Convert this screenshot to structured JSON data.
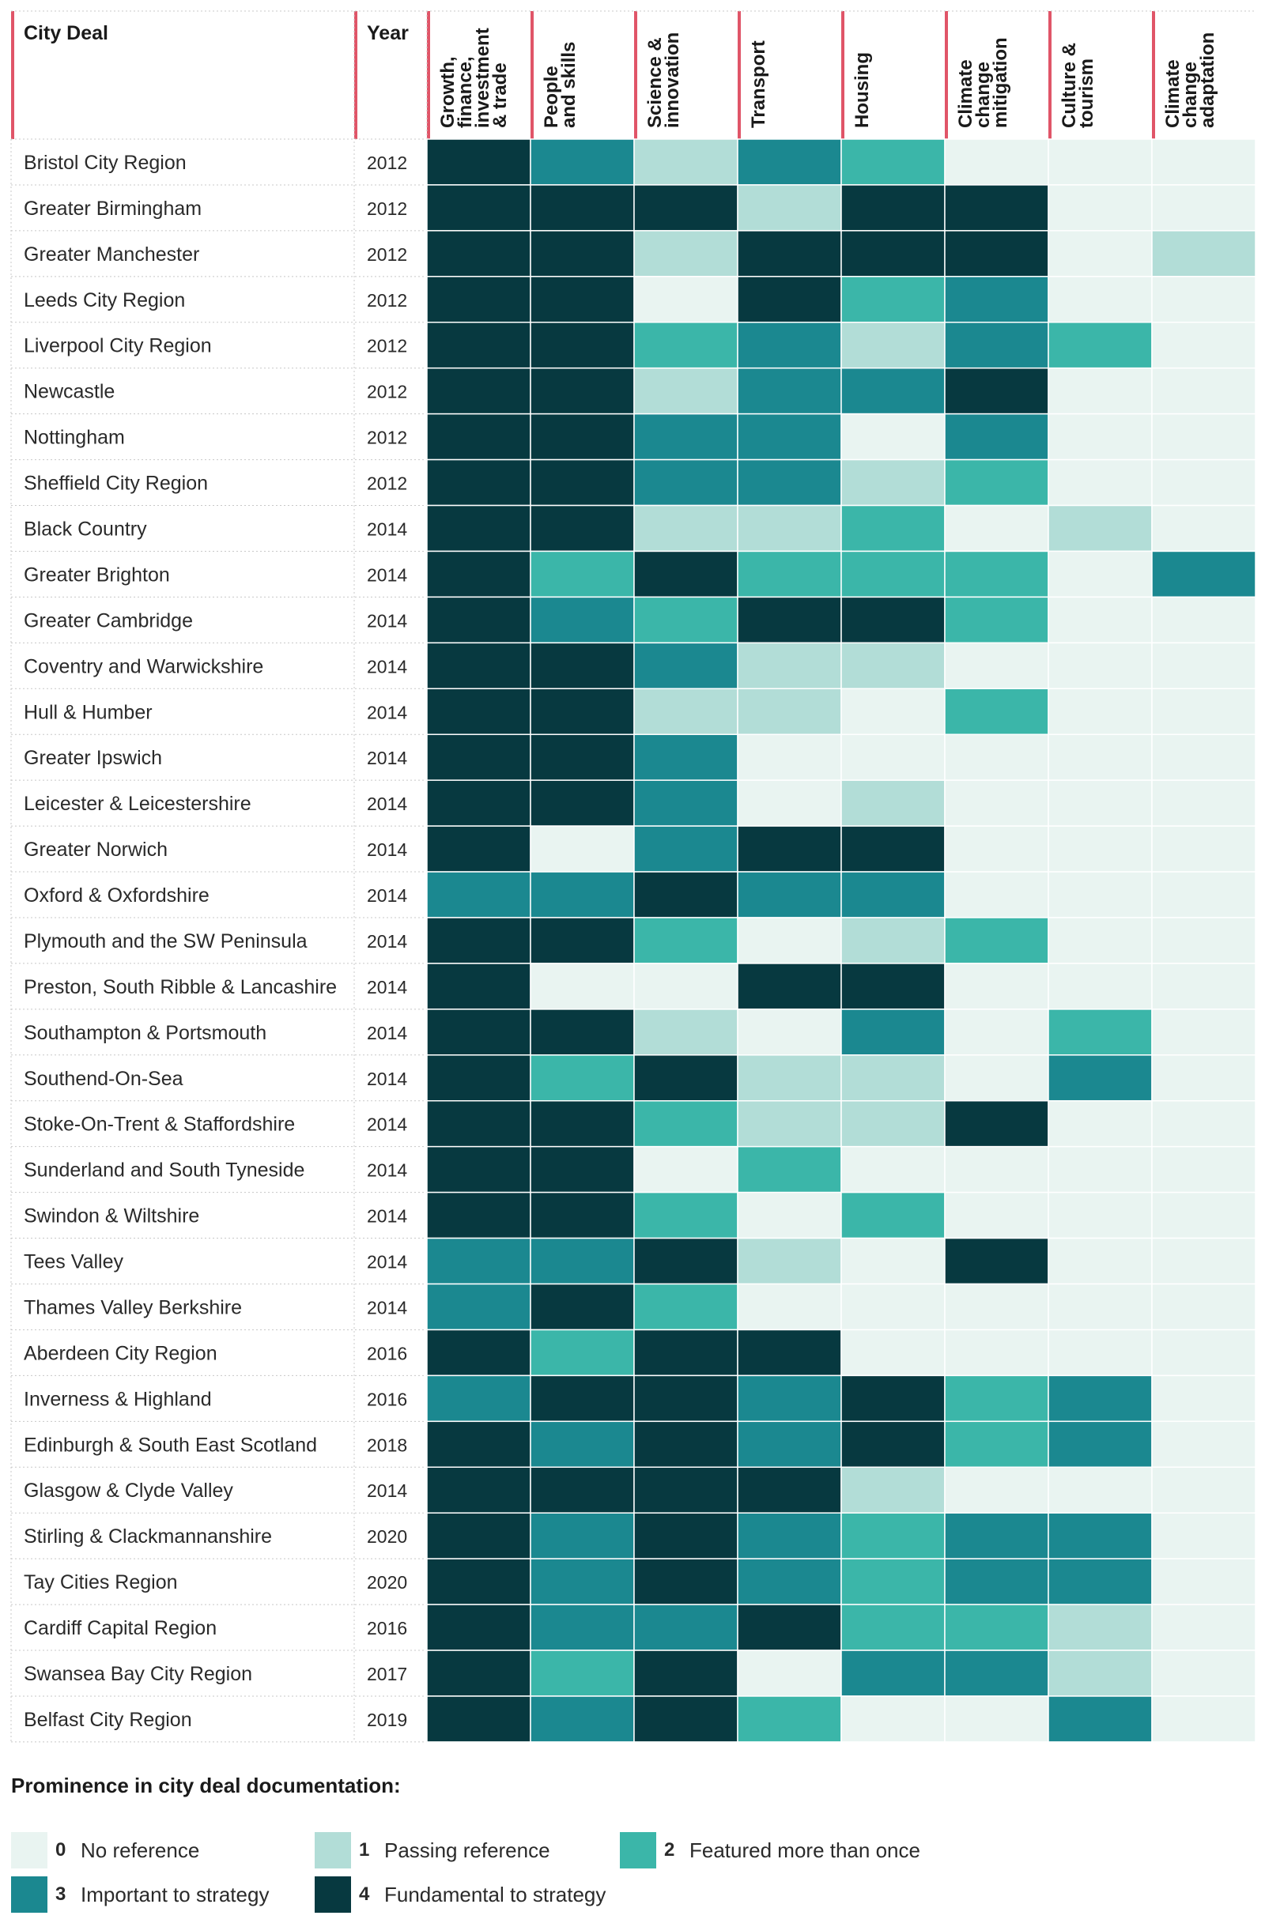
{
  "chart_data": {
    "type": "heatmap",
    "row_header": "City Deal",
    "year_header": "Year",
    "columns": [
      [
        "Growth,",
        "finance,",
        "investment",
        "& trade"
      ],
      [
        "People",
        "and skills"
      ],
      [
        "Science &",
        "innovation"
      ],
      [
        "Transport"
      ],
      [
        "Housing"
      ],
      [
        "Climate",
        "change",
        "mitigation"
      ],
      [
        "Culture &",
        "tourism"
      ],
      [
        "Climate",
        "change",
        "adaptation"
      ]
    ],
    "rows": [
      {
        "name": "Bristol City Region",
        "year": "2012",
        "values": [
          4,
          3,
          1,
          3,
          2,
          0,
          0,
          0
        ]
      },
      {
        "name": "Greater Birmingham",
        "year": "2012",
        "values": [
          4,
          4,
          4,
          1,
          4,
          4,
          0,
          0
        ]
      },
      {
        "name": "Greater Manchester",
        "year": "2012",
        "values": [
          4,
          4,
          1,
          4,
          4,
          4,
          0,
          1
        ]
      },
      {
        "name": "Leeds City Region",
        "year": "2012",
        "values": [
          4,
          4,
          0,
          4,
          2,
          3,
          0,
          0
        ]
      },
      {
        "name": "Liverpool City Region",
        "year": "2012",
        "values": [
          4,
          4,
          2,
          3,
          1,
          3,
          2,
          0
        ]
      },
      {
        "name": "Newcastle",
        "year": "2012",
        "values": [
          4,
          4,
          1,
          3,
          3,
          4,
          0,
          0
        ]
      },
      {
        "name": "Nottingham",
        "year": "2012",
        "values": [
          4,
          4,
          3,
          3,
          0,
          3,
          0,
          0
        ]
      },
      {
        "name": "Sheffield City Region",
        "year": "2012",
        "values": [
          4,
          4,
          3,
          3,
          1,
          2,
          0,
          0
        ]
      },
      {
        "name": "Black Country",
        "year": "2014",
        "values": [
          4,
          4,
          1,
          1,
          2,
          0,
          1,
          0
        ]
      },
      {
        "name": "Greater Brighton",
        "year": "2014",
        "values": [
          4,
          2,
          4,
          2,
          2,
          2,
          0,
          3
        ]
      },
      {
        "name": "Greater Cambridge",
        "year": "2014",
        "values": [
          4,
          3,
          2,
          4,
          4,
          2,
          0,
          0
        ]
      },
      {
        "name": "Coventry and Warwickshire",
        "year": "2014",
        "values": [
          4,
          4,
          3,
          1,
          1,
          0,
          0,
          0
        ]
      },
      {
        "name": "Hull & Humber",
        "year": "2014",
        "values": [
          4,
          4,
          1,
          1,
          0,
          2,
          0,
          0
        ]
      },
      {
        "name": "Greater Ipswich",
        "year": "2014",
        "values": [
          4,
          4,
          3,
          0,
          0,
          0,
          0,
          0
        ]
      },
      {
        "name": "Leicester & Leicestershire",
        "year": "2014",
        "values": [
          4,
          4,
          3,
          0,
          1,
          0,
          0,
          0
        ]
      },
      {
        "name": "Greater Norwich",
        "year": "2014",
        "values": [
          4,
          0,
          3,
          4,
          4,
          0,
          0,
          0
        ]
      },
      {
        "name": "Oxford & Oxfordshire",
        "year": "2014",
        "values": [
          3,
          3,
          4,
          3,
          3,
          0,
          0,
          0
        ]
      },
      {
        "name": "Plymouth and the SW Peninsula",
        "year": "2014",
        "values": [
          4,
          4,
          2,
          0,
          1,
          2,
          0,
          0
        ]
      },
      {
        "name": "Preston, South Ribble & Lancashire",
        "year": "2014",
        "values": [
          4,
          0,
          0,
          4,
          4,
          0,
          0,
          0
        ]
      },
      {
        "name": "Southampton & Portsmouth",
        "year": "2014",
        "values": [
          4,
          4,
          1,
          0,
          3,
          0,
          2,
          0
        ]
      },
      {
        "name": "Southend-On-Sea",
        "year": "2014",
        "values": [
          4,
          2,
          4,
          1,
          1,
          0,
          3,
          0
        ]
      },
      {
        "name": "Stoke-On-Trent & Staffordshire",
        "year": "2014",
        "values": [
          4,
          4,
          2,
          1,
          1,
          4,
          0,
          0
        ]
      },
      {
        "name": "Sunderland and South Tyneside",
        "year": "2014",
        "values": [
          4,
          4,
          0,
          2,
          0,
          0,
          0,
          0
        ]
      },
      {
        "name": "Swindon & Wiltshire",
        "year": "2014",
        "values": [
          4,
          4,
          2,
          0,
          2,
          0,
          0,
          0
        ]
      },
      {
        "name": "Tees Valley",
        "year": "2014",
        "values": [
          3,
          3,
          4,
          1,
          0,
          4,
          0,
          0
        ]
      },
      {
        "name": "Thames Valley Berkshire",
        "year": "2014",
        "values": [
          3,
          4,
          2,
          0,
          0,
          0,
          0,
          0
        ]
      },
      {
        "name": "Aberdeen City Region",
        "year": "2016",
        "values": [
          4,
          2,
          4,
          4,
          0,
          0,
          0,
          0
        ]
      },
      {
        "name": "Inverness & Highland",
        "year": "2016",
        "values": [
          3,
          4,
          4,
          3,
          4,
          2,
          3,
          0
        ]
      },
      {
        "name": "Edinburgh & South East Scotland",
        "year": "2018",
        "values": [
          4,
          3,
          4,
          3,
          4,
          2,
          3,
          0
        ]
      },
      {
        "name": "Glasgow & Clyde Valley",
        "year": "2014",
        "values": [
          4,
          4,
          4,
          4,
          1,
          0,
          0,
          0
        ]
      },
      {
        "name": "Stirling & Clackmannanshire",
        "year": "2020",
        "values": [
          4,
          3,
          4,
          3,
          2,
          3,
          3,
          0
        ]
      },
      {
        "name": "Tay Cities Region",
        "year": "2020",
        "values": [
          4,
          3,
          4,
          3,
          2,
          3,
          3,
          0
        ]
      },
      {
        "name": "Cardiff Capital Region",
        "year": "2016",
        "values": [
          4,
          3,
          3,
          4,
          2,
          2,
          1,
          0
        ]
      },
      {
        "name": "Swansea Bay City Region",
        "year": "2017",
        "values": [
          4,
          2,
          4,
          0,
          3,
          3,
          1,
          0
        ]
      },
      {
        "name": "Belfast City Region",
        "year": "2019",
        "values": [
          4,
          3,
          4,
          2,
          0,
          0,
          3,
          0
        ]
      }
    ],
    "colors": [
      "#e9f4f1",
      "#b2ddd7",
      "#3bb6a9",
      "#1b8890",
      "#073940"
    ],
    "header_accent": "#e05568"
  },
  "legend": {
    "title": "Prominence in city deal documentation:",
    "items": [
      {
        "level": "0",
        "label": "No reference"
      },
      {
        "level": "1",
        "label": "Passing reference"
      },
      {
        "level": "2",
        "label": "Featured more than once"
      },
      {
        "level": "3",
        "label": "Important to strategy"
      },
      {
        "level": "4",
        "label": "Fundamental to strategy"
      }
    ]
  }
}
